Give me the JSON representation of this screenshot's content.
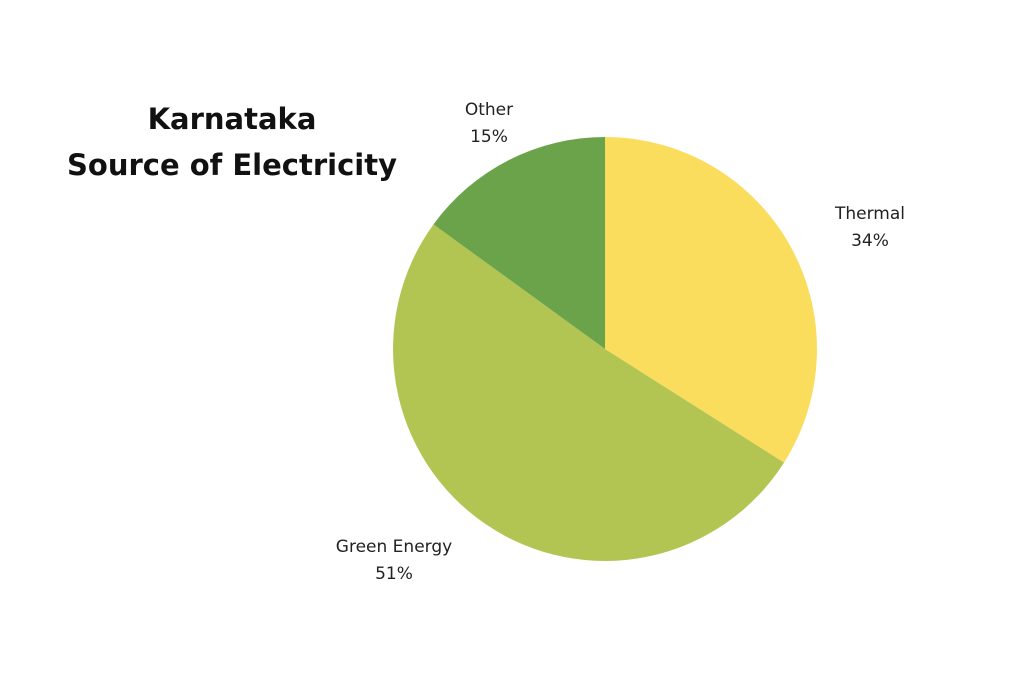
{
  "chart_data": {
    "type": "pie",
    "title_lines": [
      "Karnataka",
      "Source of Electricity"
    ],
    "start_angle_deg": 0,
    "direction": "clockwise",
    "legend": "none",
    "slices": [
      {
        "name": "Thermal",
        "value": 34,
        "label": "34%",
        "color": "#FBDD5E"
      },
      {
        "name": "Green Energy",
        "value": 51,
        "label": "51%",
        "color": "#B2C552"
      },
      {
        "name": "Other",
        "value": 15,
        "label": "15%",
        "color": "#6BA34B"
      }
    ]
  }
}
